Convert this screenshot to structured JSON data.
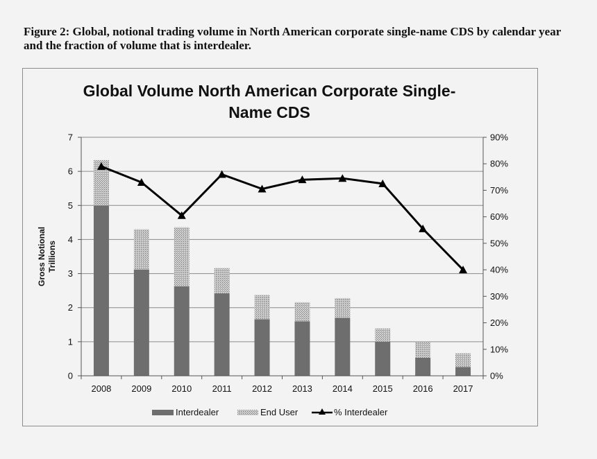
{
  "figure_caption": "Figure 2: Global, notional trading volume in North American corporate single-name CDS by calendar year and the fraction of volume that is interdealer.",
  "chart_data": {
    "type": "bar",
    "stacked": true,
    "title_line1": "Global Volume North American Corporate Single-",
    "title_line2": "Name CDS",
    "ylabel_line1": "Gross Notional",
    "ylabel_line2": "Trillions",
    "categories": [
      "2008",
      "2009",
      "2010",
      "2011",
      "2012",
      "2013",
      "2014",
      "2015",
      "2016",
      "2017"
    ],
    "series": [
      {
        "name": "Interdealer",
        "kind": "bar",
        "axis": "left",
        "values": [
          5.0,
          3.12,
          2.63,
          2.42,
          1.66,
          1.6,
          1.7,
          1.0,
          0.53,
          0.26
        ]
      },
      {
        "name": "End User",
        "kind": "bar",
        "axis": "left",
        "values": [
          1.33,
          1.18,
          1.73,
          0.74,
          0.71,
          0.56,
          0.58,
          0.39,
          0.46,
          0.4
        ]
      },
      {
        "name": "% Interdealer",
        "kind": "line",
        "axis": "right",
        "values": [
          79,
          73,
          60.5,
          76,
          70.5,
          74,
          74.5,
          72.5,
          55.5,
          40
        ]
      }
    ],
    "ylim": [
      0,
      7
    ],
    "y_ticks": [
      "0",
      "1",
      "2",
      "3",
      "4",
      "5",
      "6",
      "7"
    ],
    "y2lim": [
      0,
      90
    ],
    "y2_ticks": [
      "0%",
      "10%",
      "20%",
      "30%",
      "40%",
      "50%",
      "60%",
      "70%",
      "80%",
      "90%"
    ],
    "grid": true,
    "legend_position": "bottom",
    "legend": [
      "Interdealer",
      "End User",
      "% Interdealer"
    ]
  },
  "colors": {
    "interdealer": "#6e6e6e",
    "end_user_light": "#cfcfcf",
    "end_user_dark": "#7a7a7a",
    "line": "#000000",
    "grid": "#8a8a8a",
    "axis": "#555555"
  }
}
